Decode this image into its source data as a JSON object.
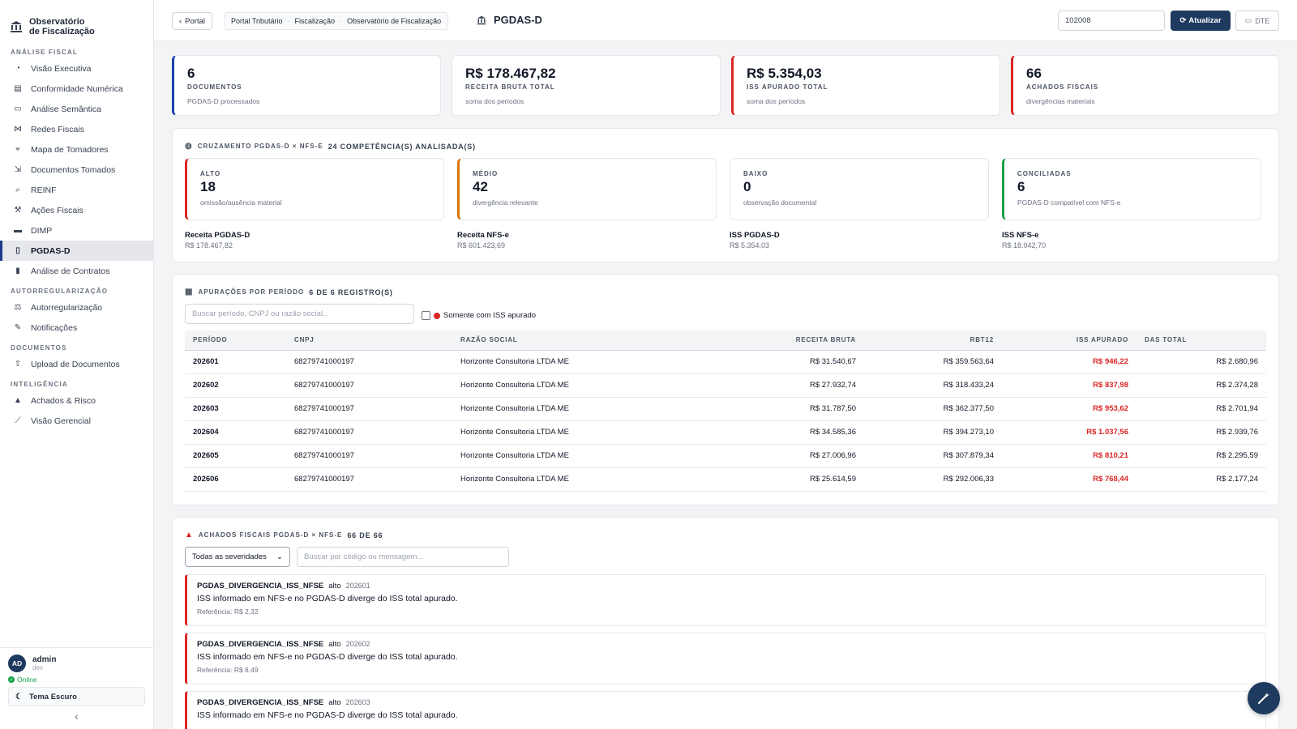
{
  "app": {
    "title_line1": "Observatório",
    "title_line2": "de Fiscalização"
  },
  "sidebar": {
    "sections": [
      {
        "label": "ANÁLISE FISCAL",
        "items": [
          {
            "label": "Visão Executiva",
            "icon": "gauge-icon"
          },
          {
            "label": "Conformidade Numérica",
            "icon": "calculator-icon"
          },
          {
            "label": "Análise Semântica",
            "icon": "id-card-icon"
          },
          {
            "label": "Redes Fiscais",
            "icon": "network-icon"
          },
          {
            "label": "Mapa de Tomadores",
            "icon": "map-icon"
          },
          {
            "label": "Documentos Tomados",
            "icon": "file-import-icon"
          },
          {
            "label": "REINF",
            "icon": "search-icon"
          },
          {
            "label": "Ações Fiscais",
            "icon": "gavel-icon"
          },
          {
            "label": "DIMP",
            "icon": "credit-card-icon"
          },
          {
            "label": "PGDAS-D",
            "icon": "file-icon",
            "active": true
          },
          {
            "label": "Análise de Contratos",
            "icon": "file-contract-icon"
          }
        ]
      },
      {
        "label": "AUTORREGULARIZAÇÃO",
        "items": [
          {
            "label": "Autorregularização",
            "icon": "scale-icon"
          },
          {
            "label": "Notificações",
            "icon": "file-signature-icon"
          }
        ]
      },
      {
        "label": "DOCUMENTOS",
        "items": [
          {
            "label": "Upload de Documentos",
            "icon": "upload-icon"
          }
        ]
      },
      {
        "label": "INTELIGÊNCIA",
        "items": [
          {
            "label": "Achados & Risco",
            "icon": "warning-icon"
          },
          {
            "label": "Visão Gerencial",
            "icon": "chart-line-icon"
          }
        ]
      }
    ],
    "user": {
      "initials": "AD",
      "name": "admin",
      "role": "dev",
      "status": "Online"
    },
    "theme_label": "Tema Escuro"
  },
  "topbar": {
    "back_label": "Portal",
    "breadcrumb": [
      "Portal Tributário",
      "Fiscalização",
      "Observatório de Fiscalização"
    ],
    "page_title": "PGDAS-D",
    "input_value": "102008",
    "refresh_label": "Atualizar",
    "dte_label": "DTE"
  },
  "kpis": [
    {
      "value": "6",
      "label": "DOCUMENTOS",
      "sub": "PGDAS-D processados",
      "accent": "#1e40af"
    },
    {
      "value": "R$ 178.467,82",
      "label": "RECEITA BRUTA TOTAL",
      "sub": "soma dos períodos",
      "accent": "none"
    },
    {
      "value": "R$ 5.354,03",
      "label": "ISS APURADO TOTAL",
      "sub": "soma dos períodos",
      "accent": "#dc2626"
    },
    {
      "value": "66",
      "label": "ACHADOS FISCAIS",
      "sub": "divergências materiais",
      "accent": "#dc2626"
    }
  ],
  "cross": {
    "title": "CRUZAMENTO PGDAS-D × NFS-E",
    "count": "24 COMPETÊNCIA(S) ANALISADA(S)",
    "severities": [
      {
        "label": "ALTO",
        "value": "18",
        "sub": "omissão/ausência material",
        "color": "#dc2626"
      },
      {
        "label": "MÉDIO",
        "value": "42",
        "sub": "divergência relevante",
        "color": "#d97706"
      },
      {
        "label": "BAIXO",
        "value": "0",
        "sub": "observação documental",
        "color": "#e5e7eb"
      },
      {
        "label": "CONCILIADAS",
        "value": "6",
        "sub": "PGDAS-D compatível com NFS-e",
        "color": "#16a34a"
      }
    ],
    "totals": [
      {
        "label": "Receita PGDAS-D",
        "value": "R$ 178.467,82"
      },
      {
        "label": "Receita NFS-e",
        "value": "R$ 601.423,69"
      },
      {
        "label": "ISS PGDAS-D",
        "value": "R$ 5.354,03"
      },
      {
        "label": "ISS NFS-e",
        "value": "R$ 18.042,70"
      }
    ]
  },
  "periods": {
    "title": "APURAÇÕES POR PERÍODO",
    "count": "6 DE 6 REGISTRO(S)",
    "search_placeholder": "Buscar período, CNPJ ou razão social...",
    "filter_label": "Somente com ISS apurado",
    "columns": [
      "PERÍODO",
      "CNPJ",
      "RAZÃO SOCIAL",
      "RECEITA BRUTA",
      "RBT12",
      "ISS APURADO",
      "DAS TOTAL"
    ],
    "rows": [
      [
        "202601",
        "68279741000197",
        "Horizonte Consultoria LTDA ME",
        "R$ 31.540,67",
        "R$ 359.563,64",
        "R$ 946,22",
        "R$ 2.680,96"
      ],
      [
        "202602",
        "68279741000197",
        "Horizonte Consultoria LTDA ME",
        "R$ 27.932,74",
        "R$ 318.433,24",
        "R$ 837,98",
        "R$ 2.374,28"
      ],
      [
        "202603",
        "68279741000197",
        "Horizonte Consultoria LTDA ME",
        "R$ 31.787,50",
        "R$ 362.377,50",
        "R$ 953,62",
        "R$ 2.701,94"
      ],
      [
        "202604",
        "68279741000197",
        "Horizonte Consultoria LTDA ME",
        "R$ 34.585,36",
        "R$ 394.273,10",
        "R$ 1.037,56",
        "R$ 2.939,76"
      ],
      [
        "202605",
        "68279741000197",
        "Horizonte Consultoria LTDA ME",
        "R$ 27.006,96",
        "R$ 307.879,34",
        "R$ 810,21",
        "R$ 2.295,59"
      ],
      [
        "202606",
        "68279741000197",
        "Horizonte Consultoria LTDA ME",
        "R$ 25.614,59",
        "R$ 292.006,33",
        "R$ 768,44",
        "R$ 2.177,24"
      ]
    ]
  },
  "findings": {
    "title": "ACHADOS FISCAIS PGDAS-D × NFS-E",
    "count": "66 DE 66",
    "severity_select": "Todas as severidades",
    "search_placeholder": "Buscar por código ou mensagem...",
    "items": [
      {
        "code": "PGDAS_DIVERGENCIA_ISS_NFSE",
        "severity": "alto",
        "period": "202601",
        "message": "ISS informado em NFS-e no PGDAS-D diverge do ISS total apurado.",
        "reference": "Referência: R$ 2,32"
      },
      {
        "code": "PGDAS_DIVERGENCIA_ISS_NFSE",
        "severity": "alto",
        "period": "202602",
        "message": "ISS informado em NFS-e no PGDAS-D diverge do ISS total apurado.",
        "reference": "Referência: R$ 8,49"
      },
      {
        "code": "PGDAS_DIVERGENCIA_ISS_NFSE",
        "severity": "alto",
        "period": "202603",
        "message": "ISS informado em NFS-e no PGDAS-D diverge do ISS total apurado.",
        "reference": ""
      }
    ]
  }
}
